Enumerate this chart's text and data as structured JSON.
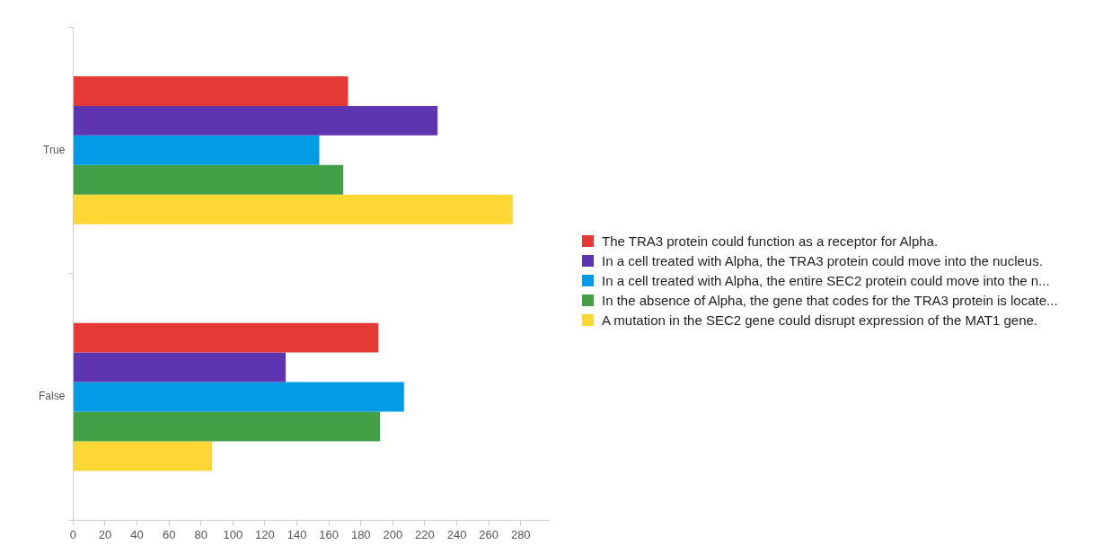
{
  "chart_data": {
    "type": "bar",
    "orientation": "horizontal",
    "categories": [
      "True",
      "False"
    ],
    "series": [
      {
        "name": "The TRA3 protein could function as a receptor for Alpha.",
        "color": "#e53935",
        "values": [
          172,
          191
        ]
      },
      {
        "name": "In a cell treated with Alpha, the TRA3 protein could move into the nucleus.",
        "color": "#5e35b1",
        "values": [
          228,
          133
        ]
      },
      {
        "name": "In a cell treated with Alpha, the entire SEC2 protein could move into the n...",
        "color": "#039be5",
        "values": [
          154,
          207
        ]
      },
      {
        "name": "In the absence of Alpha, the gene that codes for the TRA3 protein is locate...",
        "color": "#43a047",
        "values": [
          169,
          192
        ]
      },
      {
        "name": "A mutation in the SEC2 gene could disrupt expression of the MAT1 gene.",
        "color": "#fdd835",
        "values": [
          275,
          87
        ]
      }
    ],
    "xlim": [
      0,
      297
    ],
    "xticks": [
      0,
      20,
      40,
      60,
      80,
      100,
      120,
      140,
      160,
      180,
      200,
      220,
      240,
      260,
      280
    ],
    "grid": false,
    "legend": "right"
  }
}
